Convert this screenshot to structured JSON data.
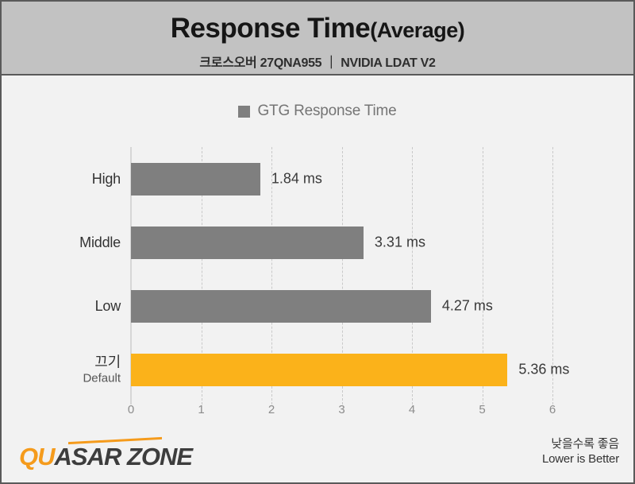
{
  "header": {
    "title": "Response Time",
    "title_suffix": "(Average)",
    "subtitle": "크로스오버 27QNA955 ｜ NVIDIA LDAT V2"
  },
  "legend": {
    "label": "GTG Response Time",
    "swatch_color": "#7f7f7f"
  },
  "chart_data": {
    "type": "bar",
    "orientation": "horizontal",
    "title": "Response Time(Average)",
    "subtitle": "크로스오버 27QNA955 ｜ NVIDIA LDAT V2",
    "series_name": "GTG Response Time",
    "categories": [
      "High",
      "Middle",
      "Low",
      "끄기"
    ],
    "category_sublabels": [
      "",
      "",
      "",
      "Default"
    ],
    "values": [
      1.84,
      3.31,
      4.27,
      5.36
    ],
    "value_labels": [
      "1.84 ms",
      "3.31 ms",
      "4.27 ms",
      "5.36 ms"
    ],
    "bar_colors": [
      "#7f7f7f",
      "#7f7f7f",
      "#7f7f7f",
      "#fbb21a"
    ],
    "xlabel": "",
    "ylabel": "",
    "xlim": [
      0,
      6
    ],
    "xticks": [
      0,
      1,
      2,
      3,
      4,
      5,
      6
    ],
    "grid": true,
    "grid_style": "dashed-vertical",
    "legend_position": "top"
  },
  "footer": {
    "logo_part1": "QU",
    "logo_part2": "ASAR ZONE",
    "note_line1": "낮을수록 좋음",
    "note_line2": "Lower is Better"
  },
  "colors": {
    "accent_orange": "#fbb21a",
    "bar_gray": "#7f7f7f",
    "header_bg": "#c2c2c2",
    "body_bg": "#f2f2f2",
    "frame_border": "#5a5a5a"
  }
}
